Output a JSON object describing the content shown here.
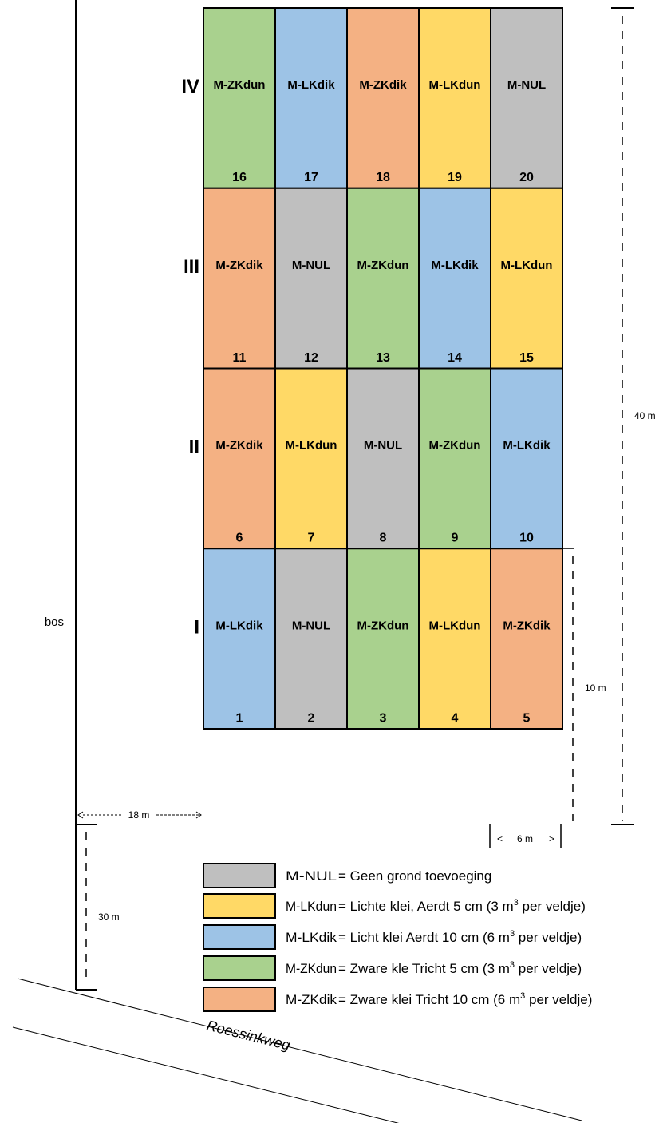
{
  "colors": {
    "NUL": "#bfbfbf",
    "LKdun": "#ffd966",
    "LKdik": "#9dc3e6",
    "ZKdun": "#a9d18e",
    "ZKdik": "#f4b183"
  },
  "blocks": [
    {
      "label": "IV",
      "plots": [
        {
          "num": "16",
          "code": "M-ZKdun",
          "type": "ZKdun"
        },
        {
          "num": "17",
          "code": "M-LKdik",
          "type": "LKdik"
        },
        {
          "num": "18",
          "code": "M-ZKdik",
          "type": "ZKdik"
        },
        {
          "num": "19",
          "code": "M-LKdun",
          "type": "LKdun"
        },
        {
          "num": "20",
          "code": "M-NUL",
          "type": "NUL"
        }
      ]
    },
    {
      "label": "III",
      "plots": [
        {
          "num": "11",
          "code": "M-ZKdik",
          "type": "ZKdik"
        },
        {
          "num": "12",
          "code": "M-NUL",
          "type": "NUL"
        },
        {
          "num": "13",
          "code": "M-ZKdun",
          "type": "ZKdun"
        },
        {
          "num": "14",
          "code": "M-LKdik",
          "type": "LKdik"
        },
        {
          "num": "15",
          "code": "M-LKdun",
          "type": "LKdun"
        }
      ]
    },
    {
      "label": "II",
      "plots": [
        {
          "num": "6",
          "code": "M-ZKdik",
          "type": "ZKdik"
        },
        {
          "num": "7",
          "code": "M-LKdun",
          "type": "LKdun"
        },
        {
          "num": "8",
          "code": "M-NUL",
          "type": "NUL"
        },
        {
          "num": "9",
          "code": "M-ZKdun",
          "type": "ZKdun"
        },
        {
          "num": "10",
          "code": "M-LKdik",
          "type": "LKdik"
        }
      ]
    },
    {
      "label": "I",
      "plots": [
        {
          "num": "1",
          "code": "M-LKdik",
          "type": "LKdik"
        },
        {
          "num": "2",
          "code": "M-NUL",
          "type": "NUL"
        },
        {
          "num": "3",
          "code": "M-ZKdun",
          "type": "ZKdun"
        },
        {
          "num": "4",
          "code": "M-LKdun",
          "type": "LKdun"
        },
        {
          "num": "5",
          "code": "M-ZKdik",
          "type": "ZKdik"
        }
      ]
    }
  ],
  "dimensions": {
    "total_height": "40 m",
    "block_height": "10 m",
    "plot_width": "6 m",
    "plot_width_left_bracket": "<",
    "plot_width_right_bracket": ">",
    "distance_to_forest": "18 m",
    "distance_to_road": "30 m"
  },
  "side_label": "bos",
  "road_name": "Roessinkweg",
  "legend": [
    {
      "type": "NUL",
      "code": "M-NUL",
      "pre": "= Geen grond toevoeging",
      "sup": "",
      "post": ""
    },
    {
      "type": "LKdun",
      "code": "M-LKdun",
      "pre": "= Lichte klei, Aerdt 5 cm (3 m",
      "sup": "3",
      "post": " per veldje)"
    },
    {
      "type": "LKdik",
      "code": "M-LKdik",
      "pre": "= Licht klei Aerdt 10 cm (6 m",
      "sup": "3",
      "post": " per veldje)"
    },
    {
      "type": "ZKdun",
      "code": "M-ZKdun",
      "pre": "= Zware kle Tricht 5 cm (3 m",
      "sup": "3",
      "post": " per veldje)"
    },
    {
      "type": "ZKdik",
      "code": "M-ZKdik",
      "pre": "= Zware klei Tricht 10 cm (6 m",
      "sup": "3",
      "post": " per veldje)"
    }
  ]
}
